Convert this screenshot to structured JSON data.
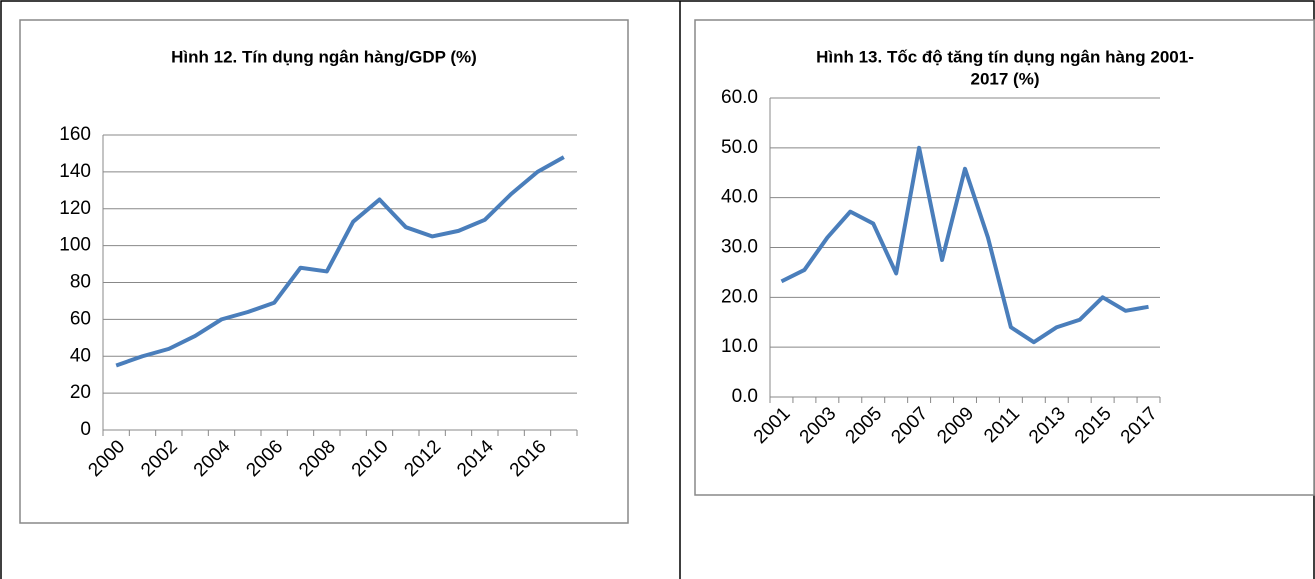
{
  "chart_data": [
    {
      "type": "line",
      "title": [
        "Hình 12. Tín dụng ngân hàng/GDP (%)"
      ],
      "categories": [
        "2000",
        null,
        "2002",
        null,
        "2004",
        null,
        "2006",
        null,
        "2008",
        null,
        "2010",
        null,
        "2012",
        null,
        "2014",
        null,
        "2016",
        null
      ],
      "series": [
        {
          "color": "#4a7ebb",
          "values": [
            35,
            40,
            44,
            51,
            60,
            64,
            69,
            88,
            86,
            113,
            125,
            110,
            105,
            108,
            114,
            128,
            140,
            148
          ]
        }
      ],
      "ylim": [
        0,
        160
      ],
      "yticks": [
        0,
        20,
        40,
        60,
        80,
        100,
        120,
        140,
        160
      ],
      "grid": true
    },
    {
      "type": "line",
      "title": [
        "Hình 13. Tốc độ tăng tín dụng ngân hàng 2001-",
        "2017 (%)"
      ],
      "categories": [
        "2001",
        null,
        "2003",
        null,
        "2005",
        null,
        "2007",
        null,
        "2009",
        null,
        "2011",
        null,
        "2013",
        null,
        "2015",
        null,
        "2017"
      ],
      "series": [
        {
          "color": "#4a7ebb",
          "values": [
            23.2,
            25.5,
            32,
            37.2,
            34.8,
            24.8,
            50,
            27.5,
            45.8,
            32,
            14,
            11,
            14,
            15.5,
            20,
            17.3,
            18.1
          ]
        }
      ],
      "ylim": [
        0,
        60
      ],
      "yticks": [
        {
          "value": 0,
          "label": "0.0"
        },
        {
          "value": 10,
          "label": "10.0"
        },
        {
          "value": 20,
          "label": "20.0"
        },
        {
          "value": 30,
          "label": "30.0"
        },
        {
          "value": 40,
          "label": "40.0"
        },
        {
          "value": 50,
          "label": "50.0"
        },
        {
          "value": 60,
          "label": "60.0"
        }
      ],
      "grid": true
    }
  ]
}
